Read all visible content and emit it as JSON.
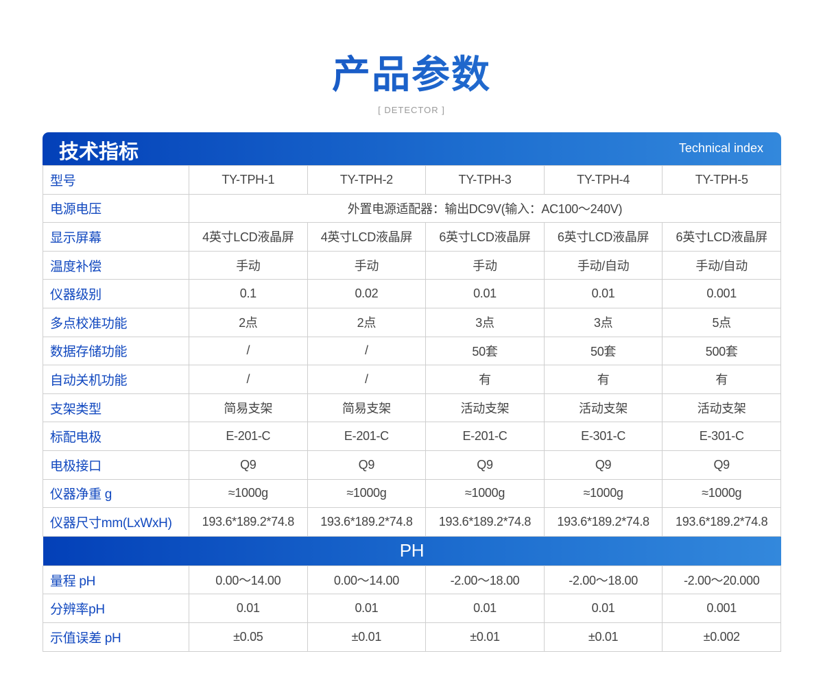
{
  "title": "产品参数",
  "subtitle": "[ DETECTOR ]",
  "header": {
    "title": "技术指标",
    "subtitle": "Technical index"
  },
  "rows": [
    {
      "label": "型号",
      "values": [
        "TY-TPH-1",
        "TY-TPH-2",
        "TY-TPH-3",
        "TY-TPH-4",
        "TY-TPH-5"
      ]
    },
    {
      "label": "电源电压",
      "values": [
        "外置电源适配器：输出DC9V(输入：AC100～240V)"
      ]
    },
    {
      "label": "显示屏幕",
      "values": [
        "4英寸LCD液晶屏",
        "4英寸LCD液晶屏",
        "6英寸LCD液晶屏",
        "6英寸LCD液晶屏",
        "6英寸LCD液晶屏"
      ]
    },
    {
      "label": "温度补偿",
      "values": [
        "手动",
        "手动",
        "手动",
        "手动/自动",
        "手动/自动"
      ]
    },
    {
      "label": "仪器级别",
      "values": [
        "0.1",
        "0.02",
        "0.01",
        "0.01",
        "0.001"
      ]
    },
    {
      "label": "多点校准功能",
      "values": [
        "2点",
        "2点",
        "3点",
        "3点",
        "5点"
      ]
    },
    {
      "label": "数据存储功能",
      "values": [
        "/",
        "/",
        "50套",
        "50套",
        "500套"
      ]
    },
    {
      "label": "自动关机功能",
      "values": [
        "/",
        "/",
        "有",
        "有",
        "有"
      ]
    },
    {
      "label": "支架类型",
      "values": [
        "简易支架",
        "简易支架",
        "活动支架",
        "活动支架",
        "活动支架"
      ]
    },
    {
      "label": "标配电极",
      "values": [
        "E-201-C",
        "E-201-C",
        "E-201-C",
        "E-301-C",
        "E-301-C"
      ]
    },
    {
      "label": "电极接口",
      "values": [
        "Q9",
        "Q9",
        "Q9",
        "Q9",
        "Q9"
      ]
    },
    {
      "label": "仪器净重 g",
      "values": [
        "≈1000g",
        "≈1000g",
        "≈1000g",
        "≈1000g",
        "≈1000g"
      ]
    },
    {
      "label": "仪器尺寸mm(LxWxH)",
      "values": [
        "193.6*189.2*74.8",
        "193.6*189.2*74.8",
        "193.6*189.2*74.8",
        "193.6*189.2*74.8",
        "193.6*189.2*74.8"
      ]
    }
  ],
  "section": "PH",
  "ph_rows": [
    {
      "label": "量程 pH",
      "values": [
        "0.00～14.00",
        "0.00～14.00",
        "-2.00～18.00",
        "-2.00～18.00",
        "-2.00～20.000"
      ]
    },
    {
      "label": "分辨率pH",
      "values": [
        "0.01",
        "0.01",
        "0.01",
        "0.01",
        "0.001"
      ]
    },
    {
      "label": "示值误差 pH",
      "values": [
        "±0.05",
        "±0.01",
        "±0.01",
        "±0.01",
        "±0.002"
      ]
    }
  ]
}
